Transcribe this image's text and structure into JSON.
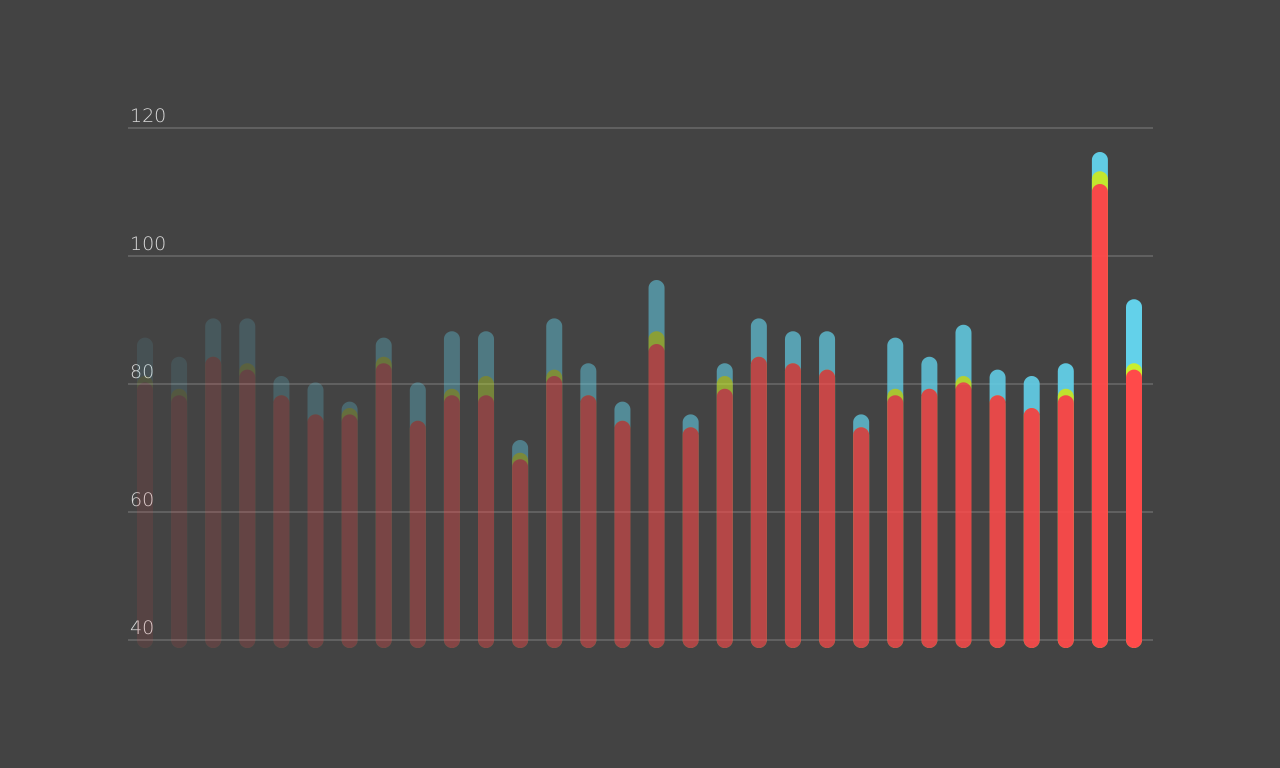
{
  "chart_data": {
    "type": "bar",
    "title": "",
    "xlabel": "",
    "ylabel": "",
    "ylim": [
      40,
      120
    ],
    "y_ticks": [
      {
        "value": 120,
        "label": "120"
      },
      {
        "value": 100,
        "label": "100"
      },
      {
        "value": 80,
        "label": "80"
      },
      {
        "value": 60,
        "label": "60"
      },
      {
        "value": 40,
        "label": "40"
      }
    ],
    "grid": true,
    "legend": "none",
    "fade": "bars fade from left (faint) to right (full opacity)",
    "colors": {
      "background": "#434343",
      "gridline": "#6a6a6a",
      "tick_label": "#d8d8d8",
      "top": "#63d1ea",
      "middle": "#c8ee2e",
      "base": "#ff4a4a"
    },
    "series": [
      {
        "values": [
          86,
          83,
          89,
          89,
          80,
          79,
          76,
          86,
          79,
          87,
          87,
          70,
          89,
          82,
          76,
          95,
          74,
          82,
          89,
          87,
          87,
          74,
          86,
          83,
          88,
          81,
          80,
          82,
          115,
          92
        ]
      },
      {
        "values": [
          80,
          78,
          83,
          82,
          77,
          74,
          75,
          83,
          73,
          78,
          80,
          68,
          81,
          77,
          73,
          87,
          72,
          80,
          83,
          82,
          81,
          72,
          78,
          78,
          80,
          77,
          75,
          78,
          112,
          82
        ]
      },
      {
        "values": [
          79,
          77,
          83,
          81,
          77,
          74,
          74,
          82,
          73,
          77,
          77,
          67,
          80,
          77,
          73,
          85,
          72,
          78,
          83,
          82,
          81,
          72,
          77,
          78,
          79,
          77,
          75,
          77,
          110,
          81
        ]
      }
    ]
  }
}
